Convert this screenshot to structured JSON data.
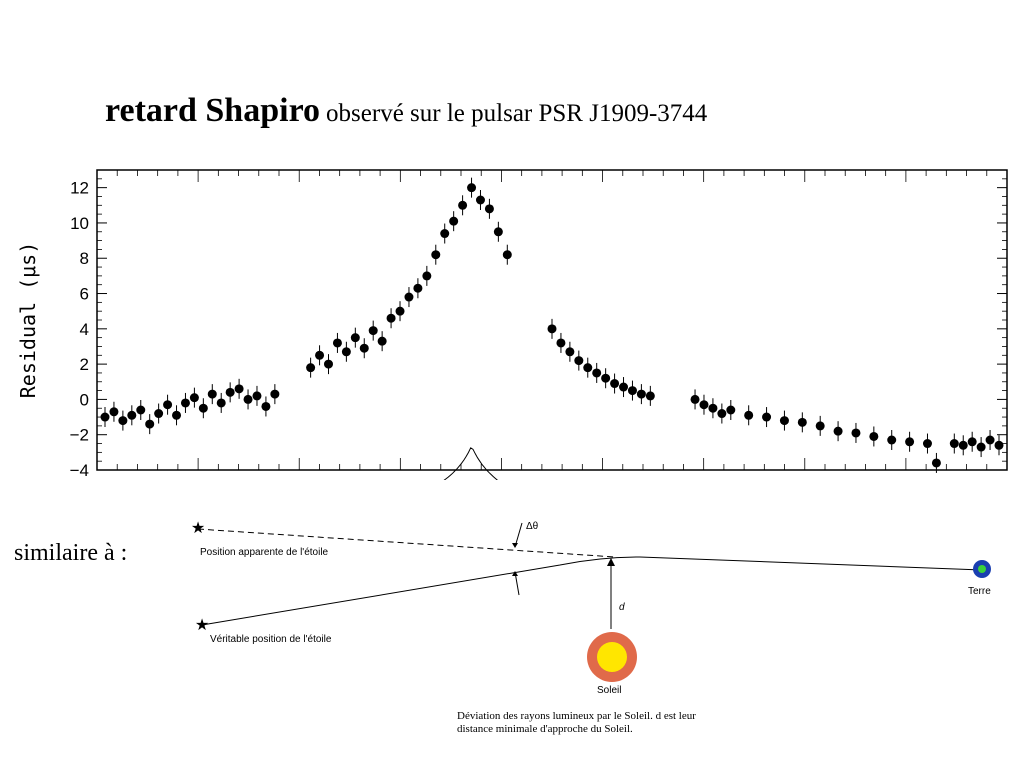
{
  "title": {
    "bold": "retard Shapiro",
    "normal": "observé sur le pulsar PSR J1909-3744"
  },
  "chart_data": {
    "type": "scatter",
    "title": "",
    "xlabel": "",
    "ylabel": "Residual (μs)",
    "ylim": [
      -4,
      13
    ],
    "yticks": [
      "12",
      "10",
      "8",
      "6",
      "4",
      "2",
      "0",
      "−2",
      "−4"
    ],
    "ytick_values": [
      12,
      10,
      8,
      6,
      4,
      2,
      0,
      -2,
      -4
    ],
    "grid": false,
    "series": [
      {
        "points": [
          [
            0.0,
            -1.0
          ],
          [
            0.01,
            -0.7
          ],
          [
            0.02,
            -1.2
          ],
          [
            0.03,
            -0.9
          ],
          [
            0.04,
            -0.6
          ],
          [
            0.05,
            -1.4
          ],
          [
            0.06,
            -0.8
          ],
          [
            0.07,
            -0.3
          ],
          [
            0.08,
            -0.9
          ],
          [
            0.09,
            -0.2
          ],
          [
            0.1,
            0.1
          ],
          [
            0.11,
            -0.5
          ],
          [
            0.12,
            0.3
          ],
          [
            0.13,
            -0.2
          ],
          [
            0.14,
            0.4
          ],
          [
            0.15,
            0.6
          ],
          [
            0.16,
            0.0
          ],
          [
            0.17,
            0.2
          ],
          [
            0.18,
            -0.4
          ],
          [
            0.19,
            0.3
          ],
          [
            0.23,
            1.8
          ],
          [
            0.24,
            2.5
          ],
          [
            0.25,
            2.0
          ],
          [
            0.26,
            3.2
          ],
          [
            0.27,
            2.7
          ],
          [
            0.28,
            3.5
          ],
          [
            0.29,
            2.9
          ],
          [
            0.3,
            3.9
          ],
          [
            0.31,
            3.3
          ],
          [
            0.32,
            4.6
          ],
          [
            0.33,
            5.0
          ],
          [
            0.34,
            5.8
          ],
          [
            0.35,
            6.3
          ],
          [
            0.36,
            7.0
          ],
          [
            0.37,
            8.2
          ],
          [
            0.38,
            9.4
          ],
          [
            0.39,
            10.1
          ],
          [
            0.4,
            11.0
          ],
          [
            0.41,
            12.0
          ],
          [
            0.42,
            11.3
          ],
          [
            0.43,
            10.8
          ],
          [
            0.44,
            9.5
          ],
          [
            0.45,
            8.2
          ],
          [
            0.5,
            4.0
          ],
          [
            0.51,
            3.2
          ],
          [
            0.52,
            2.7
          ],
          [
            0.53,
            2.2
          ],
          [
            0.54,
            1.8
          ],
          [
            0.55,
            1.5
          ],
          [
            0.56,
            1.2
          ],
          [
            0.57,
            0.9
          ],
          [
            0.58,
            0.7
          ],
          [
            0.59,
            0.5
          ],
          [
            0.6,
            0.3
          ],
          [
            0.61,
            0.2
          ],
          [
            0.66,
            0.0
          ],
          [
            0.67,
            -0.3
          ],
          [
            0.68,
            -0.5
          ],
          [
            0.69,
            -0.8
          ],
          [
            0.7,
            -0.6
          ],
          [
            0.72,
            -0.9
          ],
          [
            0.74,
            -1.0
          ],
          [
            0.76,
            -1.2
          ],
          [
            0.78,
            -1.3
          ],
          [
            0.8,
            -1.5
          ],
          [
            0.82,
            -1.8
          ],
          [
            0.84,
            -1.9
          ],
          [
            0.86,
            -2.1
          ],
          [
            0.88,
            -2.3
          ],
          [
            0.9,
            -2.4
          ],
          [
            0.92,
            -2.5
          ],
          [
            0.93,
            -3.6
          ],
          [
            0.95,
            -2.5
          ],
          [
            0.96,
            -2.6
          ],
          [
            0.97,
            -2.4
          ],
          [
            0.98,
            -2.7
          ],
          [
            0.99,
            -2.3
          ],
          [
            1.0,
            -2.6
          ]
        ]
      }
    ]
  },
  "diagram": {
    "prefix": "similaire à :",
    "apparent": "Position apparente de l'étoile",
    "real": "Véritable position de l'étoile",
    "earth": "Terre",
    "sun": "Soleil",
    "d": "d",
    "delta": "Δθ",
    "caption1": "Déviation des rayons lumineux par le Soleil. d est leur",
    "caption2": "distance minimale d'approche du Soleil.",
    "colors": {
      "sun_outer": "#e06a4a",
      "sun_inner": "#ffe600",
      "earth": "#1a3fb0",
      "earth_core": "#3ad23a"
    }
  }
}
